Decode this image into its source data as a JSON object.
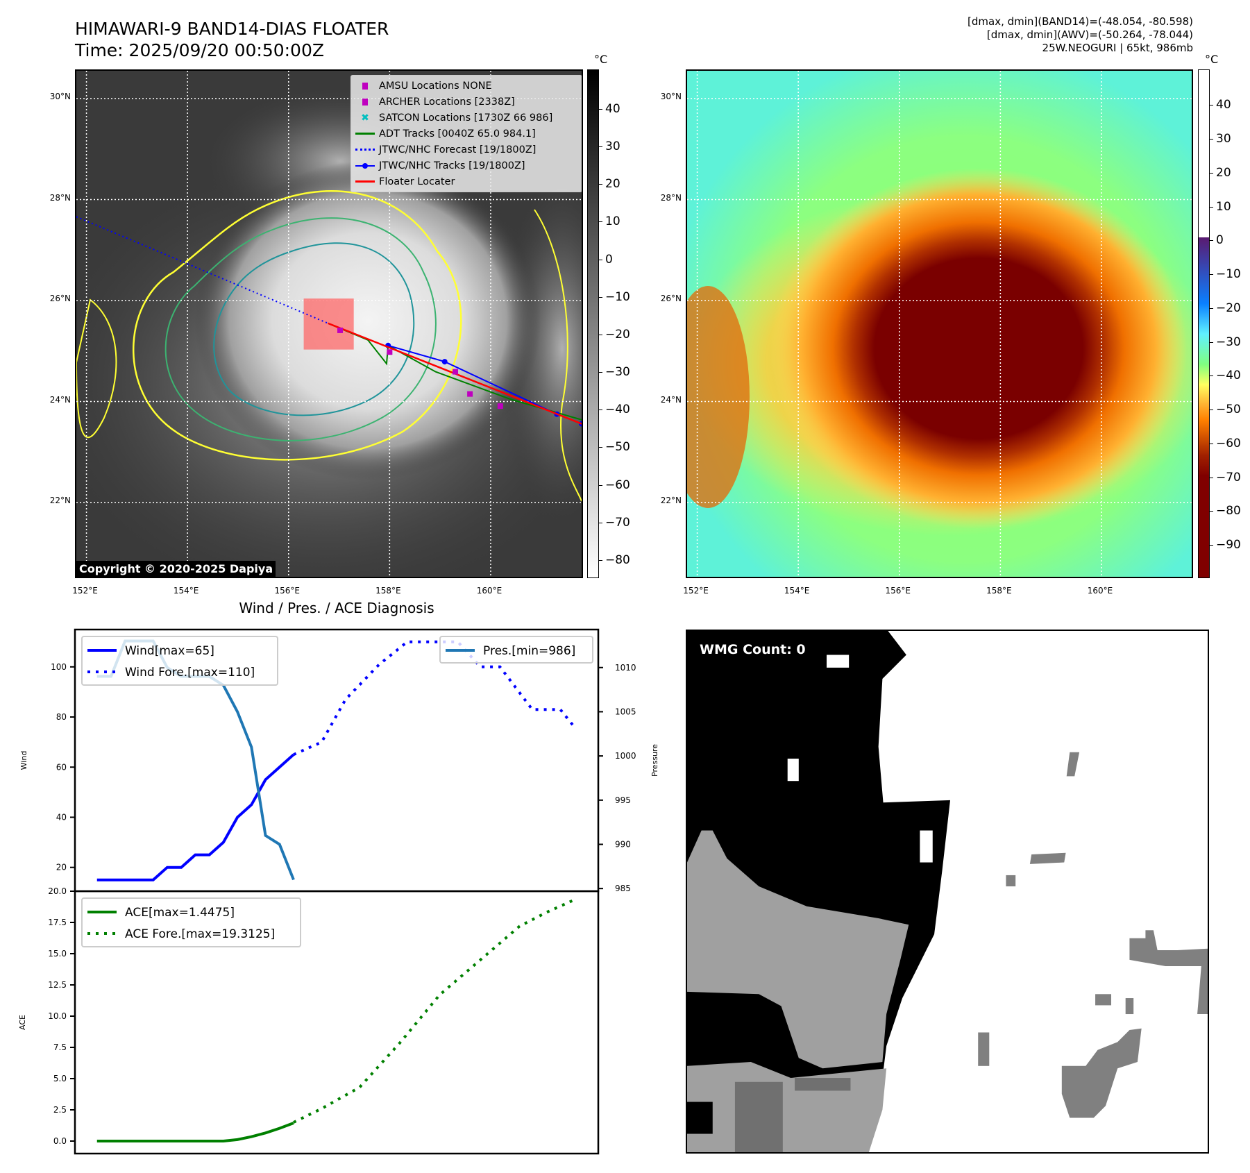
{
  "header": {
    "title_line1": "HIMAWARI-9 BAND14-DIAS FLOATER",
    "title_line2": "Time: 2025/09/20 00:50:00Z",
    "info_line1": "[dmax, dmin](BAND14)=(-48.054, -80.598)",
    "info_line2": "[dmax, dmin](AWV)=(-50.264, -78.044)",
    "info_line3": "25W.NEOGURI | 65kt, 986mb"
  },
  "maps": {
    "lon_range": [
      151.8,
      161.8
    ],
    "lat_range": [
      20.53,
      30.55
    ],
    "lon_ticks": [
      "152°E",
      "154°E",
      "156°E",
      "158°E",
      "160°E"
    ],
    "lon_values": [
      152,
      154,
      156,
      158,
      160
    ],
    "lat_ticks": [
      "30°N",
      "28°N",
      "26°N",
      "24°N",
      "22°N"
    ],
    "lat_values": [
      30,
      28,
      26,
      24,
      22
    ],
    "unit": "°C",
    "left_colorbar": {
      "range": [
        -84.8,
        50.5
      ],
      "ticks": [
        "40",
        "30",
        "20",
        "10",
        "0",
        "−10",
        "−20",
        "−30",
        "−40",
        "−50",
        "−60",
        "−70",
        "−80"
      ],
      "values": [
        40,
        30,
        20,
        10,
        0,
        -10,
        -20,
        -30,
        -40,
        -50,
        -60,
        -70,
        -80
      ]
    },
    "right_colorbar": {
      "range": [
        -99.8,
        50.5
      ],
      "ticks": [
        "40",
        "30",
        "20",
        "10",
        "0",
        "−10",
        "−20",
        "−30",
        "−40",
        "−50",
        "−60",
        "−70",
        "−80",
        "−90"
      ],
      "values": [
        40,
        30,
        20,
        10,
        0,
        -10,
        -20,
        -30,
        -40,
        -50,
        -60,
        -70,
        -80,
        -90
      ]
    },
    "copyright": "Copyright © 2020-2025 Dapiya",
    "legend": [
      {
        "label": "AMSU Locations NONE",
        "color": "#bf00bf",
        "kind": "square"
      },
      {
        "label": "ARCHER Locations [2338Z]",
        "color": "#bf00bf",
        "kind": "square"
      },
      {
        "label": "SATCON Locations [1730Z 66 986]",
        "color": "#00bfbf",
        "kind": "x"
      },
      {
        "label": "ADT Tracks [0040Z 65.0 984.1]",
        "color": "#008000",
        "kind": "line"
      },
      {
        "label": "JTWC/NHC Forecast [19/1800Z]",
        "color": "#0000ff",
        "kind": "dotted"
      },
      {
        "label": "JTWC/NHC Tracks [19/1800Z]",
        "color": "#0000ff",
        "kind": "line-dot"
      },
      {
        "label": "Floater Locater",
        "color": "#ff0000",
        "kind": "line"
      }
    ],
    "tracks": {
      "jtwc_forecast": [
        [
          151.8,
          27.66
        ],
        [
          156.78,
          25.55
        ]
      ],
      "jtwc_track": [
        [
          157.97,
          25.11
        ],
        [
          159.09,
          24.79
        ],
        [
          161.31,
          23.75
        ],
        [
          161.8,
          23.56
        ]
      ],
      "adt": [
        [
          156.78,
          25.55
        ],
        [
          157.57,
          25.22
        ],
        [
          157.94,
          24.75
        ],
        [
          157.97,
          25.11
        ],
        [
          158.91,
          24.59
        ],
        [
          160.41,
          24.04
        ],
        [
          161.8,
          23.64
        ]
      ],
      "floater": [
        [
          156.78,
          25.55
        ],
        [
          161.8,
          23.56
        ]
      ],
      "archer_points": [
        [
          157.02,
          25.41
        ],
        [
          158.0,
          24.98
        ],
        [
          159.3,
          24.59
        ],
        [
          159.59,
          24.15
        ],
        [
          160.19,
          23.91
        ]
      ],
      "floater_box": [
        [
          156.3,
          26.04
        ],
        [
          157.29,
          25.03
        ]
      ]
    },
    "wmg_count": "WMG Count: 0"
  },
  "chart_data": [
    {
      "type": "line",
      "title": "Wind / Pres. / ACE Diagnosis",
      "xlim": [
        -1.57,
        35.7
      ],
      "ylabel": "Wind",
      "ylim": [
        10.5,
        114.9
      ],
      "yticks": [
        20,
        40,
        60,
        80,
        100
      ],
      "y2label": "Pressure",
      "y2lim": [
        984.7,
        1014.3
      ],
      "y2ticks": [
        985,
        990,
        995,
        1000,
        1005,
        1010
      ],
      "series": [
        {
          "name": "Wind[max=65]",
          "axis": "left",
          "style": "solid",
          "color": "#0000ff",
          "x": [
            0,
            1,
            2,
            3,
            4,
            5,
            6,
            7,
            8,
            9,
            10,
            11,
            12,
            13,
            14
          ],
          "values": [
            15,
            15,
            15,
            15,
            15,
            20,
            20,
            25,
            25,
            30,
            40,
            45,
            55,
            60,
            65
          ]
        },
        {
          "name": "Wind Fore.[max=110]",
          "axis": "left",
          "style": "dotted",
          "color": "#0000ff",
          "x": [
            14,
            16,
            17.7,
            20.1,
            22.1,
            25.7,
            27.3,
            28.7,
            31,
            33,
            34
          ],
          "values": [
            65,
            70,
            87,
            101,
            110,
            110,
            100,
            100,
            83,
            83,
            76
          ]
        },
        {
          "name": "Pres.[min=986]",
          "axis": "right",
          "style": "solid",
          "color": "#1f77b4",
          "x": [
            0,
            1,
            2,
            3,
            4,
            5,
            6,
            7,
            8,
            9,
            10,
            11,
            12,
            13,
            14
          ],
          "values": [
            1009,
            1009,
            1013,
            1013,
            1013,
            1010,
            1009,
            1009,
            1009,
            1008,
            1005,
            1001,
            991,
            990,
            986
          ]
        }
      ]
    },
    {
      "type": "line",
      "ylabel": "ACE",
      "xlim": [
        -1.57,
        35.7
      ],
      "ylim": [
        -1.0,
        20.0
      ],
      "yticks": [
        0.0,
        2.5,
        5.0,
        7.5,
        10.0,
        12.5,
        15.0,
        17.5,
        20.0
      ],
      "ytick_labels": [
        "0.0",
        "2.5",
        "5.0",
        "7.5",
        "10.0",
        "12.5",
        "15.0",
        "17.5",
        "20.0"
      ],
      "series": [
        {
          "name": "ACE[max=1.4475]",
          "style": "solid",
          "color": "#008000",
          "x": [
            0,
            9,
            10,
            11,
            12,
            13,
            14
          ],
          "values": [
            0,
            0,
            0.12,
            0.35,
            0.65,
            1.02,
            1.4475
          ]
        },
        {
          "name": "ACE Fore.[max=19.3125]",
          "style": "dotted",
          "color": "#008000",
          "x": [
            14,
            16,
            18.7,
            21.6,
            24.4,
            27.3,
            30.1,
            32,
            34
          ],
          "values": [
            1.5,
            2.6,
            4.3,
            7.9,
            11.7,
            14.5,
            17.2,
            18.3,
            19.3125
          ]
        }
      ]
    }
  ]
}
